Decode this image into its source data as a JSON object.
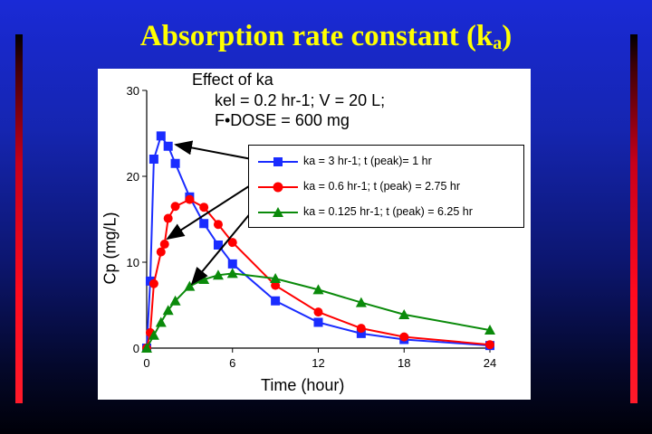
{
  "slide": {
    "title_main": "Absorption rate constant (k",
    "title_sub": "a",
    "title_end": ")",
    "title_color": "#ffff00",
    "bar_color": "#ff1a2a"
  },
  "chart_data": {
    "type": "line",
    "notes": [
      "Effect of ka",
      "kel = 0.2 hr-1; V = 20 L;",
      "F•DOSE = 600 mg"
    ],
    "xlabel": "Time (hour)",
    "ylabel": "Cp (mg/L)",
    "xlim": [
      0,
      24
    ],
    "ylim": [
      0,
      30
    ],
    "xticks": [
      0,
      6,
      12,
      18,
      24
    ],
    "yticks": [
      0,
      10,
      20,
      30
    ],
    "grid": false,
    "legend_position": "upper-right",
    "series": [
      {
        "name": "ka = 3 hr-1; t (peak)= 1 hr",
        "color": "#1a2cff",
        "marker": "square",
        "points": [
          [
            0,
            0
          ],
          [
            0.25,
            7.8
          ],
          [
            0.5,
            22
          ],
          [
            1,
            24.7
          ],
          [
            1.5,
            23.5
          ],
          [
            2,
            21.5
          ],
          [
            3,
            17.6
          ],
          [
            4,
            14.5
          ],
          [
            5,
            12
          ],
          [
            6,
            9.8
          ],
          [
            9,
            5.5
          ],
          [
            12,
            3
          ],
          [
            15,
            1.7
          ],
          [
            18,
            1
          ],
          [
            24,
            0.3
          ]
        ]
      },
      {
        "name": "ka = 0.6 hr-1; t (peak) = 2.75 hr",
        "color": "#ff0000",
        "marker": "circle",
        "points": [
          [
            0,
            0
          ],
          [
            0.25,
            1.8
          ],
          [
            0.5,
            7.5
          ],
          [
            1,
            11.2
          ],
          [
            1.25,
            12.1
          ],
          [
            1.5,
            15.1
          ],
          [
            2,
            16.5
          ],
          [
            3,
            17.3
          ],
          [
            4,
            16.4
          ],
          [
            5,
            14.4
          ],
          [
            6,
            12.3
          ],
          [
            9,
            7.3
          ],
          [
            12,
            4.2
          ],
          [
            15,
            2.3
          ],
          [
            18,
            1.3
          ],
          [
            24,
            0.4
          ]
        ]
      },
      {
        "name": "ka = 0.125 hr-1; t (peak) = 6.25 hr",
        "color": "#0a8a0a",
        "marker": "triangle",
        "points": [
          [
            0,
            0
          ],
          [
            0.5,
            1.5
          ],
          [
            1,
            3
          ],
          [
            1.5,
            4.4
          ],
          [
            2,
            5.5
          ],
          [
            3,
            7.2
          ],
          [
            4,
            8
          ],
          [
            5,
            8.5
          ],
          [
            6,
            8.7
          ],
          [
            9,
            8.1
          ],
          [
            12,
            6.8
          ],
          [
            15,
            5.3
          ],
          [
            18,
            3.9
          ],
          [
            24,
            2.1
          ]
        ]
      }
    ]
  }
}
